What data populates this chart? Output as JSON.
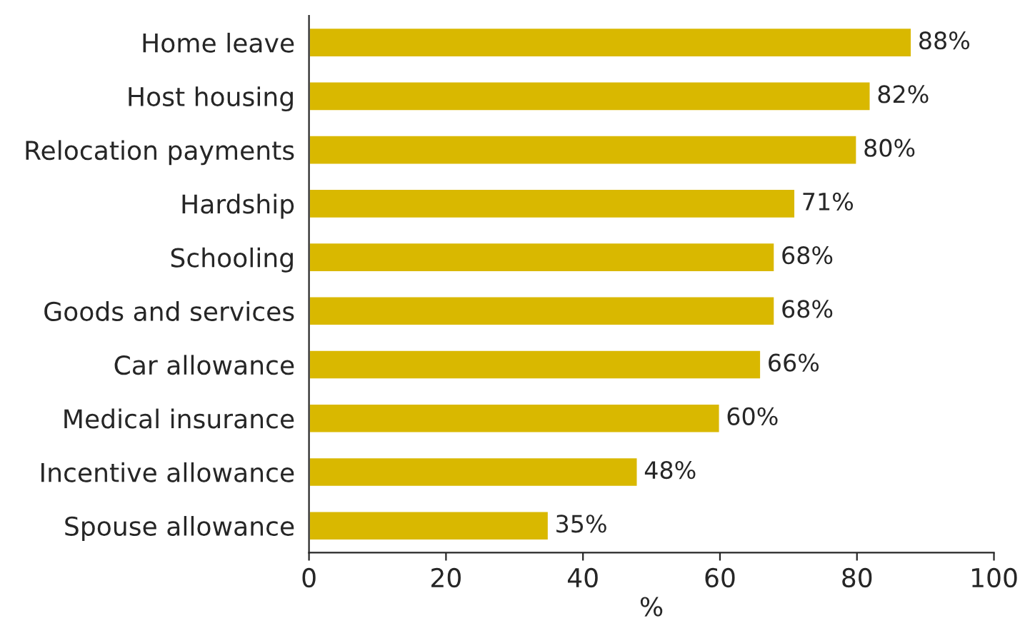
{
  "chart_data": {
    "type": "bar",
    "orientation": "horizontal",
    "xlabel": "%",
    "categories": [
      "Home leave",
      "Host housing",
      "Relocation payments",
      "Hardship",
      "Schooling",
      "Goods and services",
      "Car allowance",
      "Medical insurance",
      "Incentive allowance",
      "Spouse allowance"
    ],
    "values": [
      88,
      82,
      80,
      71,
      68,
      68,
      66,
      60,
      48,
      35
    ],
    "value_labels": [
      "88%",
      "82%",
      "80%",
      "71%",
      "68%",
      "68%",
      "66%",
      "60%",
      "48%",
      "35%"
    ],
    "color": "#d9b800",
    "xlim": [
      0,
      100
    ],
    "xticks": [
      0,
      20,
      40,
      60,
      80,
      100
    ],
    "grid": false,
    "legend": false
  }
}
